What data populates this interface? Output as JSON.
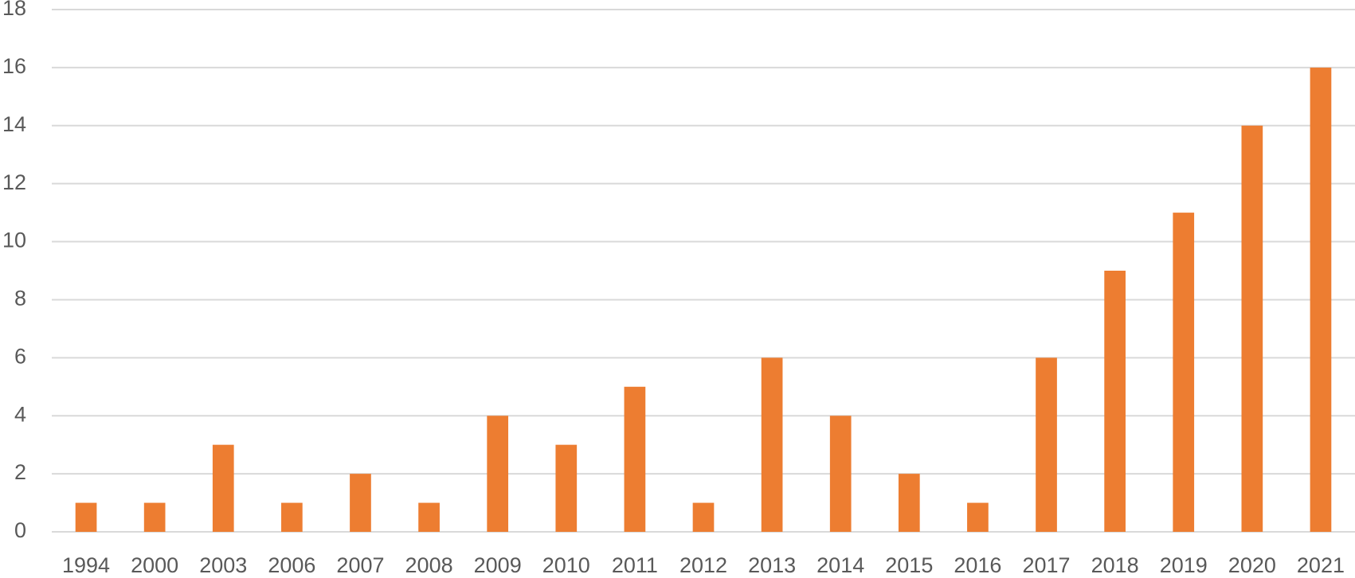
{
  "chart_data": {
    "type": "bar",
    "categories": [
      "1994",
      "2000",
      "2003",
      "2006",
      "2007",
      "2008",
      "2009",
      "2010",
      "2011",
      "2012",
      "2013",
      "2014",
      "2015",
      "2016",
      "2017",
      "2018",
      "2019",
      "2020",
      "2021"
    ],
    "values": [
      1,
      1,
      3,
      1,
      2,
      1,
      4,
      3,
      5,
      1,
      6,
      4,
      2,
      1,
      6,
      9,
      11,
      14,
      16
    ],
    "color": "#ed7d31",
    "ylim": [
      0,
      18
    ],
    "yticks": [
      0,
      2,
      4,
      6,
      8,
      10,
      12,
      14,
      16,
      18
    ],
    "grid": true
  }
}
